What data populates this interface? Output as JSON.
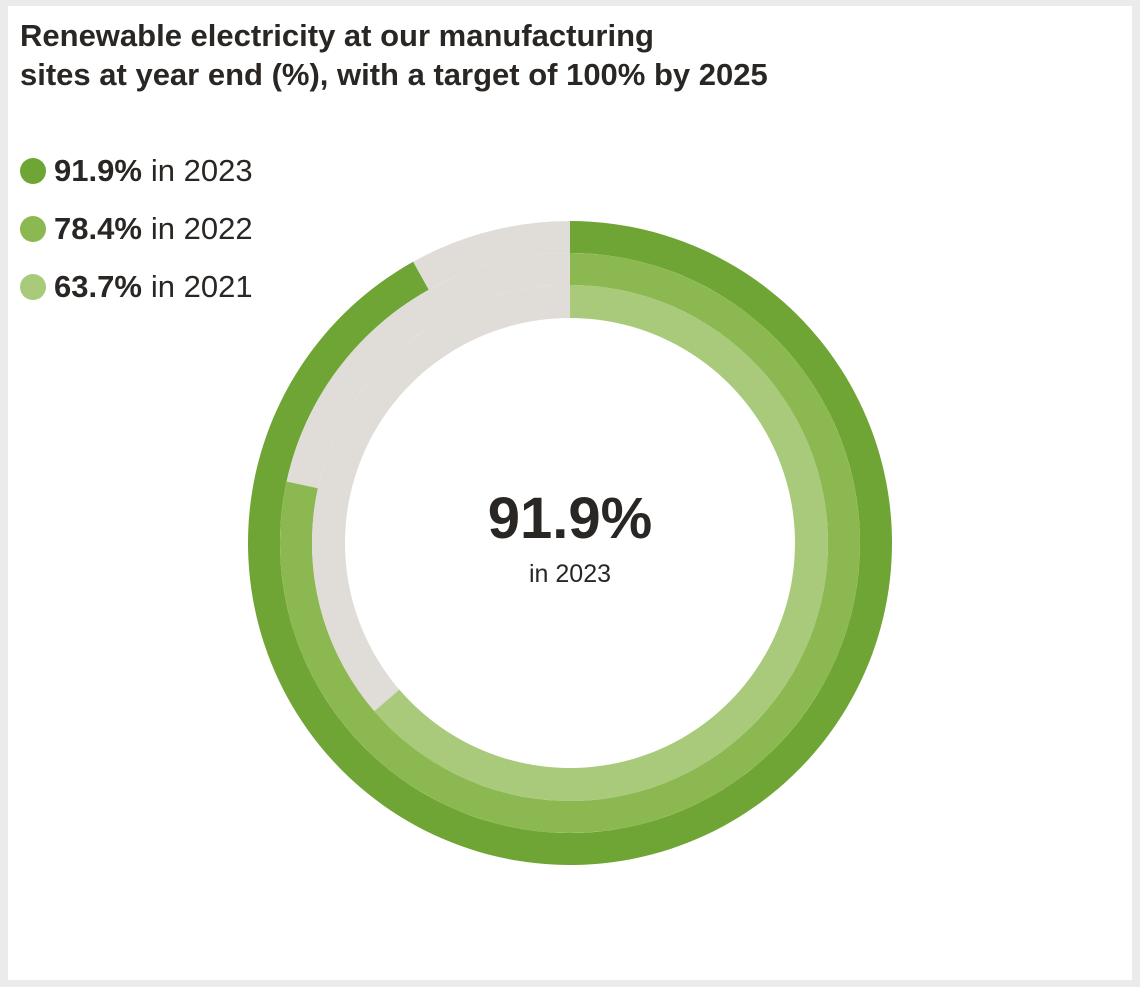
{
  "chart_data": {
    "type": "pie",
    "subtype": "nested-donut",
    "title": "Renewable electricity at our manufacturing\nsites at year end (%), with a target of 100% by 2025",
    "unit": "%",
    "max": 100,
    "remainder_color": "#e0ddd9",
    "series": [
      {
        "name": "2023",
        "value": 91.9,
        "value_label": "91.9%",
        "year_label": "in 2023",
        "color": "#6fa534"
      },
      {
        "name": "2022",
        "value": 78.4,
        "value_label": "78.4%",
        "year_label": "in 2022",
        "color": "#8cb851"
      },
      {
        "name": "2021",
        "value": 63.7,
        "value_label": "63.7%",
        "year_label": "in 2021",
        "color": "#a8ca7a"
      }
    ],
    "center": {
      "value": "91.9%",
      "label": "in 2023"
    }
  }
}
